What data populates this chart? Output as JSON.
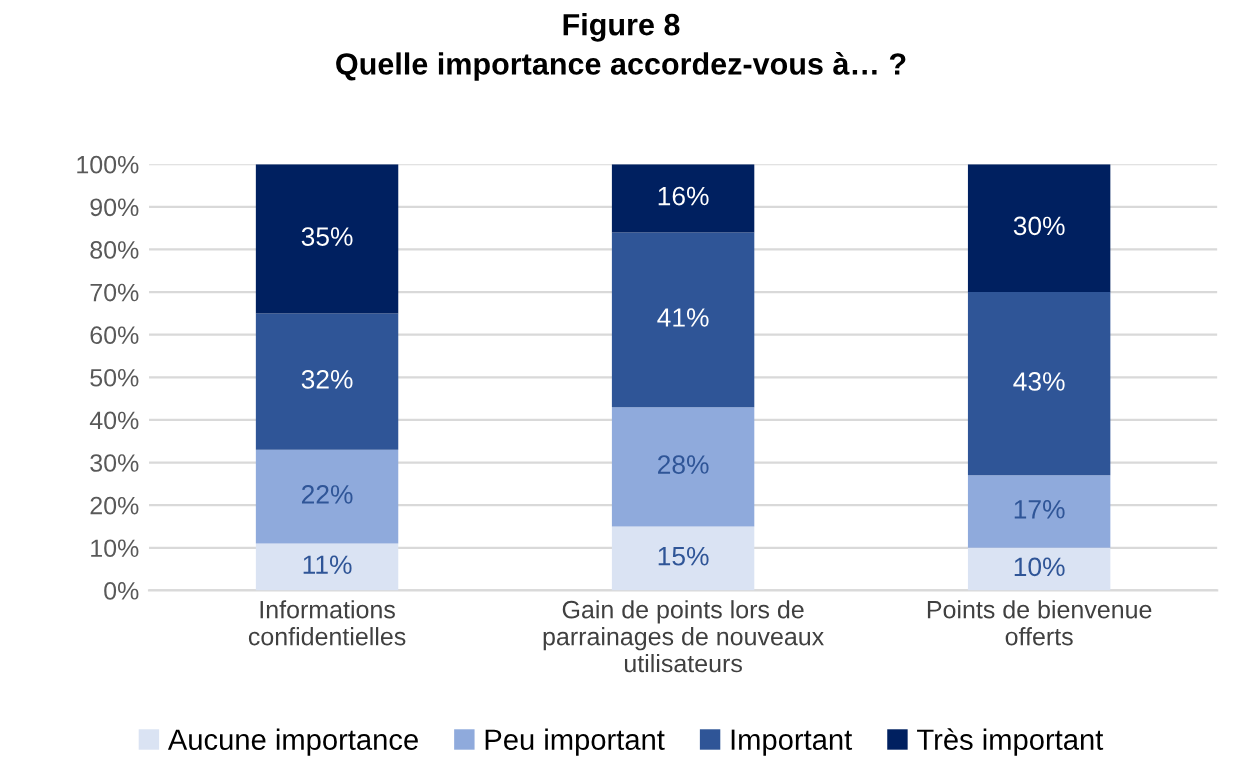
{
  "chart_data": {
    "type": "bar",
    "title": "Figure 8",
    "subtitle": "Quelle importance accordez-vous à… ?",
    "categories": [
      "Informations confidentielles",
      "Gain de points lors de parrainages de nouveaux utilisateurs",
      "Points de bienvenue offerts"
    ],
    "stacked": true,
    "series": [
      {
        "name": "Aucune importance",
        "color": "#dae3f3",
        "values": [
          11,
          15,
          10
        ],
        "value_labels": [
          "11%",
          "15%",
          "10%"
        ]
      },
      {
        "name": "Peu important",
        "color": "#8faadc",
        "values": [
          22,
          28,
          17
        ],
        "value_labels": [
          "22%",
          "28%",
          "17%"
        ]
      },
      {
        "name": "Important",
        "color": "#2f5597",
        "values": [
          32,
          41,
          43
        ],
        "value_labels": [
          "32%",
          "41%",
          "43%"
        ]
      },
      {
        "name": "Très important",
        "color": "#002060",
        "values": [
          35,
          16,
          30
        ],
        "value_labels": [
          "35%",
          "16%",
          "30%"
        ]
      }
    ],
    "ylim": [
      0,
      100
    ],
    "yticks": [
      {
        "value": 0,
        "label": "0%"
      },
      {
        "value": 10,
        "label": "10%"
      },
      {
        "value": 20,
        "label": "20%"
      },
      {
        "value": 30,
        "label": "30%"
      },
      {
        "value": 40,
        "label": "40%"
      },
      {
        "value": 50,
        "label": "50%"
      },
      {
        "value": 60,
        "label": "60%"
      },
      {
        "value": 70,
        "label": "70%"
      },
      {
        "value": 80,
        "label": "80%"
      },
      {
        "value": 90,
        "label": "90%"
      },
      {
        "value": 100,
        "label": "100%"
      }
    ],
    "grid": "y",
    "legend": "bottom"
  }
}
